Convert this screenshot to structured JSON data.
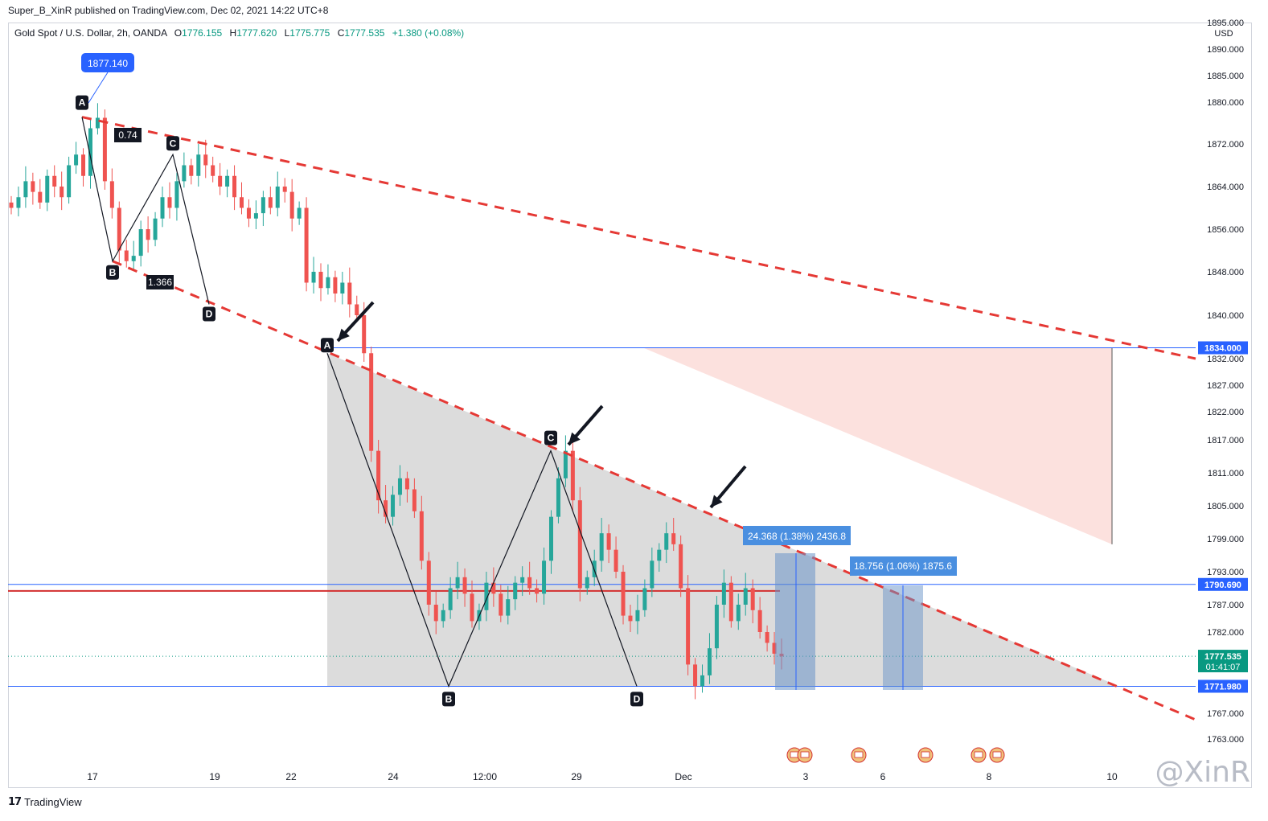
{
  "header": {
    "published": "Super_B_XinR published on TradingView.com, Dec 02, 2021 14:22 UTC+8"
  },
  "legend": {
    "symbol": "Gold Spot / U.S. Dollar, 2h, OANDA",
    "open_label": "O",
    "open": "1776.155",
    "high_label": "H",
    "high": "1777.620",
    "low_label": "L",
    "low": "1775.775",
    "close_label": "C",
    "close": "1777.535",
    "change": "+1.380 (+0.08%)"
  },
  "footer": {
    "brand": "TradingView",
    "watermark": "@XinR"
  },
  "chart_data": {
    "type": "candlestick",
    "currency": "USD",
    "y_ticks": [
      1895,
      1890,
      1885,
      1880,
      1872,
      1864,
      1856,
      1848,
      1840,
      1832,
      1827,
      1822,
      1817,
      1811,
      1805,
      1799,
      1793,
      1787,
      1782,
      1767,
      1763
    ],
    "x_ticks": [
      "17",
      "19",
      "22",
      "24",
      "12:00",
      "29",
      "Dec",
      "3",
      "6",
      "8",
      "10"
    ],
    "price_labels": [
      {
        "value": "1834.000",
        "color": "#2962ff"
      },
      {
        "value": "1790.690",
        "color": "#2962ff"
      },
      {
        "value": "1777.535",
        "color": "#089981",
        "countdown": "01:41:07"
      },
      {
        "value": "1771.980",
        "color": "#2962ff"
      }
    ],
    "pattern_1": {
      "points": [
        {
          "label": "A",
          "price": 1877.14
        },
        {
          "label": "B",
          "price": 1850.0
        },
        {
          "label": "C",
          "price": 1870.0
        },
        {
          "label": "D",
          "price": 1842.0
        }
      ],
      "ratios": [
        "0.74",
        "1.366"
      ],
      "high_label": "1877.140"
    },
    "pattern_2": {
      "points": [
        {
          "label": "A",
          "price": 1833.0
        },
        {
          "label": "B",
          "price": 1772.0
        },
        {
          "label": "C",
          "price": 1815.0
        },
        {
          "label": "D",
          "price": 1772.0
        }
      ]
    },
    "measurements": [
      {
        "text": "24.368 (1.38%) 2436.8"
      },
      {
        "text": "18.756 (1.06%) 1875.6"
      }
    ],
    "horizontal_lines": [
      {
        "price": 1834.0,
        "color": "#2962ff"
      },
      {
        "price": 1790.69,
        "color": "#2962ff"
      },
      {
        "price": 1789.5,
        "color": "#d32f2f"
      },
      {
        "price": 1771.98,
        "color": "#2962ff"
      }
    ],
    "candles_close_path": [
      1860,
      1862,
      1865,
      1863,
      1861,
      1866,
      1864,
      1862,
      1868,
      1870,
      1866,
      1875,
      1877,
      1865,
      1860,
      1852,
      1850,
      1851,
      1856,
      1854,
      1858,
      1862,
      1860,
      1865,
      1868,
      1866,
      1870,
      1868,
      1866,
      1864,
      1866,
      1862,
      1860,
      1858,
      1859,
      1862,
      1860,
      1864,
      1863,
      1858,
      1860,
      1846,
      1848,
      1845,
      1847,
      1844,
      1846,
      1842,
      1840,
      1833,
      1815,
      1806,
      1803,
      1807,
      1810,
      1808,
      1804,
      1795,
      1787,
      1784,
      1786,
      1790,
      1792,
      1789,
      1784,
      1786,
      1791,
      1789,
      1785,
      1788,
      1791,
      1792,
      1790,
      1789,
      1795,
      1803,
      1810,
      1815,
      1806,
      1790,
      1792,
      1795,
      1800,
      1797,
      1793,
      1785,
      1784,
      1786,
      1790,
      1795,
      1797,
      1800,
      1798,
      1790,
      1776,
      1772,
      1774,
      1779,
      1787,
      1791,
      1784,
      1787,
      1790,
      1786,
      1782,
      1780,
      1778,
      1777.5
    ]
  }
}
